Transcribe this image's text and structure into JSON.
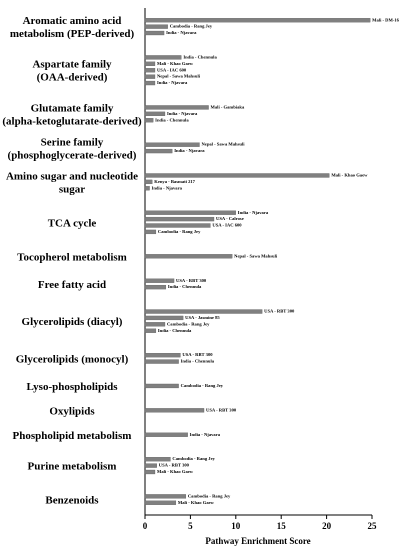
{
  "chart_data": {
    "type": "bar",
    "orientation": "horizontal",
    "x_label": "Pathway Enrichment Score",
    "xlim": [
      0,
      25
    ],
    "xticks": [
      0,
      5,
      10,
      15,
      20,
      25
    ],
    "color": "#808080",
    "groups": [
      {
        "name": "Aromatic amino acid metabolism (PEP-derived)",
        "bars": [
          {
            "label": "Mali - DM-16",
            "value": 24.8
          },
          {
            "label": "Cambodia - Rang Jey",
            "value": 2.5
          },
          {
            "label": "India - Njavara",
            "value": 2.1
          }
        ]
      },
      {
        "name": "Aspartate family (OAA-derived)",
        "bars": [
          {
            "label": "India - Chennula",
            "value": 4.0
          },
          {
            "label": "Mali - Khao Gaew",
            "value": 1.1
          },
          {
            "label": "USA - IAC 600",
            "value": 1.1
          },
          {
            "label": "Nepal - Sawa Mahsuli",
            "value": 1.1
          },
          {
            "label": "India - Njavara",
            "value": 1.1
          }
        ]
      },
      {
        "name": "Glutamate family (alpha-ketoglutarate-derived)",
        "bars": [
          {
            "label": "Mali - Gambiaka",
            "value": 7.0
          },
          {
            "label": "India - Njavara",
            "value": 2.2
          },
          {
            "label": "India - Chennula",
            "value": 0.9
          }
        ]
      },
      {
        "name": "Serine family (phosphoglycerate-derived)",
        "bars": [
          {
            "label": "Nepal - Sawa Mahsuli",
            "value": 6.0
          },
          {
            "label": "India - Njavara",
            "value": 3.0
          }
        ]
      },
      {
        "name": "Amino sugar and nucleotide sugar",
        "bars": [
          {
            "label": "Mali - Khao Gaew",
            "value": 20.3
          },
          {
            "label": "Kenya - Basmati 217",
            "value": 0.8
          },
          {
            "label": "India - Njavara",
            "value": 0.5
          }
        ]
      },
      {
        "name": "TCA cycle",
        "bars": [
          {
            "label": "India - Njavara",
            "value": 10.0
          },
          {
            "label": "USA - Calrose",
            "value": 7.6
          },
          {
            "label": "USA - IAC 600",
            "value": 7.2
          },
          {
            "label": "Cambodia - Rang Jey",
            "value": 1.2
          }
        ]
      },
      {
        "name": "Tocopherol metabolism",
        "bars": [
          {
            "label": "Nepal - Sawa Mahsuli",
            "value": 9.6
          }
        ]
      },
      {
        "name": "Free fatty acid",
        "bars": [
          {
            "label": "USA - RBT 300",
            "value": 3.2
          },
          {
            "label": "India - Chennula",
            "value": 2.3
          }
        ]
      },
      {
        "name": "Glycerolipids (diacyl)",
        "bars": [
          {
            "label": "USA - RBT 300",
            "value": 12.9
          },
          {
            "label": "USA - Jasmine 85",
            "value": 4.2
          },
          {
            "label": "Cambodia - Rang Jey",
            "value": 2.2
          },
          {
            "label": "India - Chennula",
            "value": 1.2
          }
        ]
      },
      {
        "name": "Glycerolipids (monocyl)",
        "bars": [
          {
            "label": "USA - RBT 300",
            "value": 3.9
          },
          {
            "label": "India - Chennula",
            "value": 3.7
          }
        ]
      },
      {
        "name": "Lyso-phospholipids",
        "bars": [
          {
            "label": "Cambodia - Rang Jey",
            "value": 3.7
          }
        ]
      },
      {
        "name": "Oxylipids",
        "bars": [
          {
            "label": "USA - RBT 300",
            "value": 6.5
          }
        ]
      },
      {
        "name": "Phospholipid metabolism",
        "bars": [
          {
            "label": "India - Njavara",
            "value": 4.7
          }
        ]
      },
      {
        "name": "Purine metabolism",
        "bars": [
          {
            "label": "Cambodia - Rang Jey",
            "value": 2.8
          },
          {
            "label": "USA - RBT 300",
            "value": 1.3
          },
          {
            "label": "Mali - Khao Gaew",
            "value": 1.1
          }
        ]
      },
      {
        "name": "Benzenoids",
        "bars": [
          {
            "label": "Cambodia - Rang Jey",
            "value": 4.5
          },
          {
            "label": "Mali - Khao Gaew",
            "value": 3.4
          }
        ]
      }
    ]
  }
}
